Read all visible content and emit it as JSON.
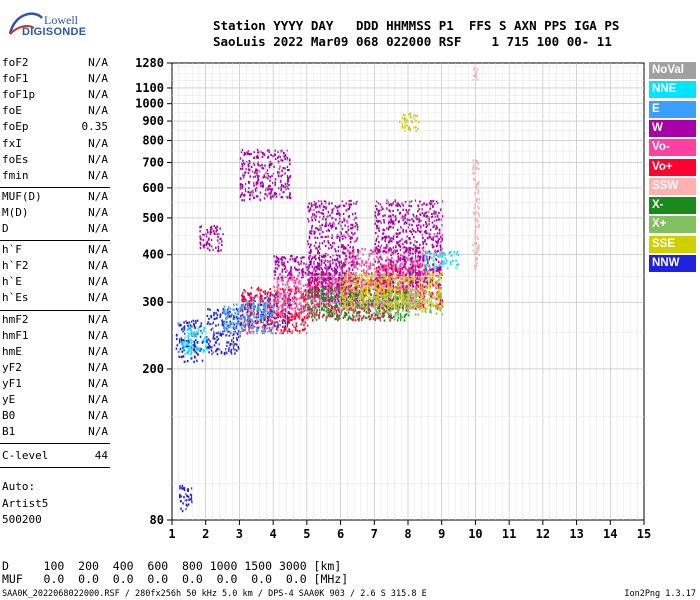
{
  "logo": {
    "line1": "Lowell",
    "line2": "DIGISONDE"
  },
  "header": {
    "row1": "Station YYYY DAY   DDD HHMMSS P1  FFS S AXN PPS IGA PS",
    "row2": "SaoLuis 2022 Mar09 068 022000 RSF    1 715 100 00- 11"
  },
  "params_group1": [
    {
      "name": "foF2",
      "value": "N/A"
    },
    {
      "name": "foF1",
      "value": "N/A"
    },
    {
      "name": "foF1p",
      "value": "N/A"
    },
    {
      "name": "foE",
      "value": "N/A"
    },
    {
      "name": "foEp",
      "value": "0.35"
    },
    {
      "name": "fxI",
      "value": "N/A"
    },
    {
      "name": "foEs",
      "value": "N/A"
    },
    {
      "name": "fmin",
      "value": "N/A"
    }
  ],
  "params_group2": [
    {
      "name": "MUF(D)",
      "value": "N/A"
    },
    {
      "name": "M(D)",
      "value": "N/A"
    },
    {
      "name": "D",
      "value": "N/A"
    }
  ],
  "params_group3": [
    {
      "name": "h`F",
      "value": "N/A"
    },
    {
      "name": "h`F2",
      "value": "N/A"
    },
    {
      "name": "h`E",
      "value": "N/A"
    },
    {
      "name": "h`Es",
      "value": "N/A"
    }
  ],
  "params_group4": [
    {
      "name": "hmF2",
      "value": "N/A"
    },
    {
      "name": "hmF1",
      "value": "N/A"
    },
    {
      "name": "hmE",
      "value": "N/A"
    },
    {
      "name": "yF2",
      "value": "N/A"
    },
    {
      "name": "yF1",
      "value": "N/A"
    },
    {
      "name": "yE",
      "value": "N/A"
    },
    {
      "name": "B0",
      "value": "N/A"
    },
    {
      "name": "B1",
      "value": "N/A"
    }
  ],
  "clevel": {
    "name": "C-level",
    "value": "44"
  },
  "auto": {
    "line1": "Auto:",
    "line2": "Artist5",
    "line3": "500200"
  },
  "legend": [
    {
      "label": "NoVal",
      "color": "#a0a0a0"
    },
    {
      "label": "NNE",
      "color": "#00e5ff"
    },
    {
      "label": "E",
      "color": "#3aa0ff"
    },
    {
      "label": "W",
      "color": "#a800a8"
    },
    {
      "label": "Vo-",
      "color": "#ff40a0"
    },
    {
      "label": "Vo+",
      "color": "#ff0030"
    },
    {
      "label": "SSW",
      "color": "#ffb0b0"
    },
    {
      "label": "X-",
      "color": "#1a8a1a"
    },
    {
      "label": "X+",
      "color": "#80c060"
    },
    {
      "label": "SSE",
      "color": "#d0d000"
    },
    {
      "label": "NNW",
      "color": "#2020e0"
    }
  ],
  "bottom": {
    "d_row": "D     100  200  400  600  800 1000 1500 3000 [km]",
    "muf_row": "MUF   0.0  0.0  0.0  0.0  0.0  0.0  0.0  0.0 [MHz]"
  },
  "footer": {
    "left": "SAA0K_2022068022000.RSF / 280fx256h 50 kHz 5.0 km / DPS-4 SAA0K 903 / 2.6 S 315.8 E",
    "right": "Ion2Png 1.3.17"
  },
  "chart_data": {
    "type": "scatter",
    "title": "",
    "xlabel": "",
    "ylabel": "",
    "x_ticks": [
      1,
      2,
      3,
      4,
      5,
      6,
      7,
      8,
      9,
      10,
      11,
      12,
      13,
      14,
      15
    ],
    "y_ticks": [
      80,
      200,
      300,
      400,
      500,
      600,
      700,
      800,
      900,
      1000,
      1100,
      1280
    ],
    "xlim": [
      1,
      15
    ],
    "ylim": [
      80,
      1280
    ],
    "y_scale": "log",
    "grid": true,
    "series": [
      {
        "name": "NNW",
        "color": "#2020e0",
        "regions": [
          [
            1.1,
            1.9,
            210,
            270
          ],
          [
            2.0,
            3.0,
            220,
            290
          ],
          [
            3.0,
            4.5,
            260,
            320
          ],
          [
            1.2,
            1.6,
            85,
            100
          ]
        ]
      },
      {
        "name": "Vo+",
        "color": "#ff0030",
        "regions": [
          [
            3.0,
            5.0,
            250,
            330
          ],
          [
            5.0,
            7.5,
            270,
            360
          ],
          [
            7.0,
            9.0,
            290,
            380
          ]
        ]
      },
      {
        "name": "Vo-",
        "color": "#ff40a0",
        "regions": [
          [
            4.0,
            6.0,
            280,
            360
          ],
          [
            6.0,
            8.5,
            290,
            420
          ]
        ]
      },
      {
        "name": "W",
        "color": "#a800a8",
        "regions": [
          [
            1.8,
            2.5,
            410,
            480
          ],
          [
            3.0,
            4.5,
            560,
            760
          ],
          [
            5.0,
            6.5,
            300,
            560
          ],
          [
            7.0,
            9.0,
            330,
            560
          ],
          [
            4.0,
            6.0,
            350,
            400
          ]
        ]
      },
      {
        "name": "NNE",
        "color": "#00e5ff",
        "regions": [
          [
            1.2,
            2.0,
            220,
            260
          ],
          [
            8.5,
            9.5,
            370,
            410
          ]
        ]
      },
      {
        "name": "E",
        "color": "#3aa0ff",
        "regions": [
          [
            2.5,
            4.0,
            250,
            300
          ]
        ]
      },
      {
        "name": "SSW",
        "color": "#ffb0b0",
        "regions": [
          [
            9.9,
            10.1,
            1150,
            1250
          ],
          [
            9.9,
            10.1,
            370,
            720
          ]
        ]
      },
      {
        "name": "X-",
        "color": "#1a8a1a",
        "regions": [
          [
            5.0,
            8.0,
            270,
            330
          ]
        ]
      },
      {
        "name": "X+",
        "color": "#80c060",
        "regions": [
          [
            7.0,
            9.0,
            280,
            320
          ]
        ]
      },
      {
        "name": "SSE",
        "color": "#d0d000",
        "regions": [
          [
            7.7,
            8.3,
            850,
            950
          ],
          [
            6.0,
            9.0,
            290,
            360
          ]
        ]
      }
    ]
  }
}
